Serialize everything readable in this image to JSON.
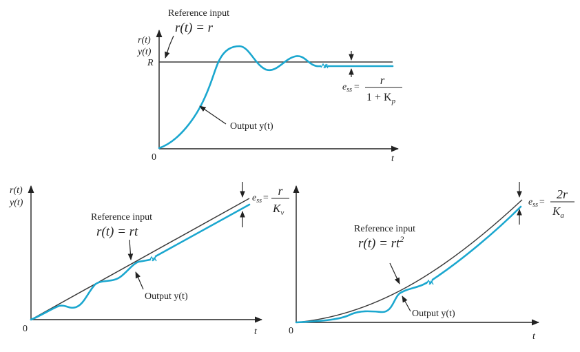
{
  "panel_step": {
    "ref_label": "Reference input",
    "ref_formula": "r(t) = r",
    "ylabel_r": "r(t)",
    "ylabel_y": "y(t)",
    "level_label": "R",
    "origin": "0",
    "xlabel": "t",
    "output_label": "Output y(t)",
    "ess_label": "e",
    "ess_sub": "ss",
    "ess_eq": "=",
    "ess_num": "r",
    "ess_den": "1 + K",
    "ess_den_sub": "p"
  },
  "panel_ramp": {
    "ref_label": "Reference input",
    "ref_formula": "r(t) = rt",
    "ylabel_r": "r(t)",
    "ylabel_y": "y(t)",
    "origin": "0",
    "xlabel": "t",
    "output_label": "Output y(t)",
    "ess_label": "e",
    "ess_sub": "ss",
    "ess_eq": "=",
    "ess_num": "r",
    "ess_den": "K",
    "ess_den_sub": "v"
  },
  "panel_parabola": {
    "ref_label": "Reference input",
    "ref_formula": "r(t) = rt",
    "ref_formula_sup": "2",
    "origin": "0",
    "xlabel": "t",
    "output_label": "Output y(t)",
    "ess_label": "e",
    "ess_sub": "ss",
    "ess_eq": "=",
    "ess_num": "2r",
    "ess_den": "K",
    "ess_den_sub": "a"
  },
  "colors": {
    "output": "#1ba7cf",
    "reference": "#3a3a3a",
    "axis": "#222222"
  }
}
